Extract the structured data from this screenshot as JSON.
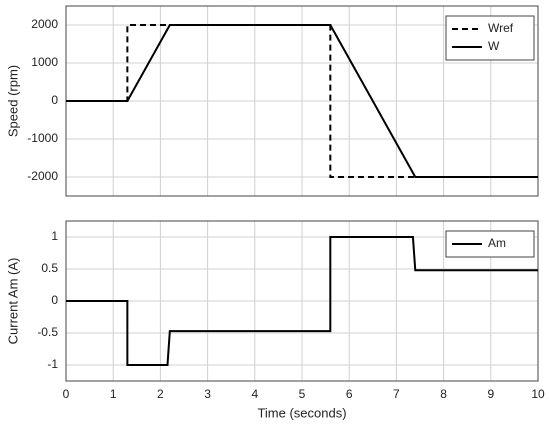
{
  "chart_data": [
    {
      "type": "line",
      "ylabel": "Speed (rpm)",
      "xlim": [
        0,
        10
      ],
      "xticks": [
        0,
        1,
        2,
        3,
        4,
        5,
        6,
        7,
        8,
        9,
        10
      ],
      "ylim": [
        -2500,
        2500
      ],
      "yticks": [
        -2000,
        -1000,
        0,
        1000,
        2000
      ],
      "grid": true,
      "legend": "upper right",
      "series": [
        {
          "name": "Wref",
          "color": "#000000",
          "linestyle": "dashed",
          "x": [
            0,
            1.3,
            1.3,
            5.6,
            5.6,
            10
          ],
          "values": [
            0,
            0,
            2000,
            2000,
            -2000,
            -2000
          ]
        },
        {
          "name": "W",
          "color": "#000000",
          "linestyle": "solid",
          "x": [
            0,
            1.3,
            2.2,
            5.6,
            7.4,
            10
          ],
          "values": [
            0,
            0,
            2000,
            2000,
            -2000,
            -2000
          ]
        }
      ]
    },
    {
      "type": "line",
      "ylabel": "Current Am (A)",
      "xlabel": "Time (seconds)",
      "xlim": [
        0,
        10
      ],
      "xticks": [
        0,
        1,
        2,
        3,
        4,
        5,
        6,
        7,
        8,
        9,
        10
      ],
      "ylim": [
        -1.25,
        1.25
      ],
      "yticks": [
        -1,
        -0.5,
        0,
        0.5,
        1
      ],
      "grid": true,
      "legend": "upper right",
      "series": [
        {
          "name": "Am",
          "color": "#000000",
          "linestyle": "solid",
          "x": [
            0,
            1.3,
            1.3,
            2.15,
            2.2,
            5.6,
            5.6,
            7.35,
            7.4,
            10
          ],
          "values": [
            0,
            0,
            -1,
            -1,
            -0.47,
            -0.47,
            1,
            1,
            0.48,
            0.48
          ]
        }
      ]
    }
  ]
}
